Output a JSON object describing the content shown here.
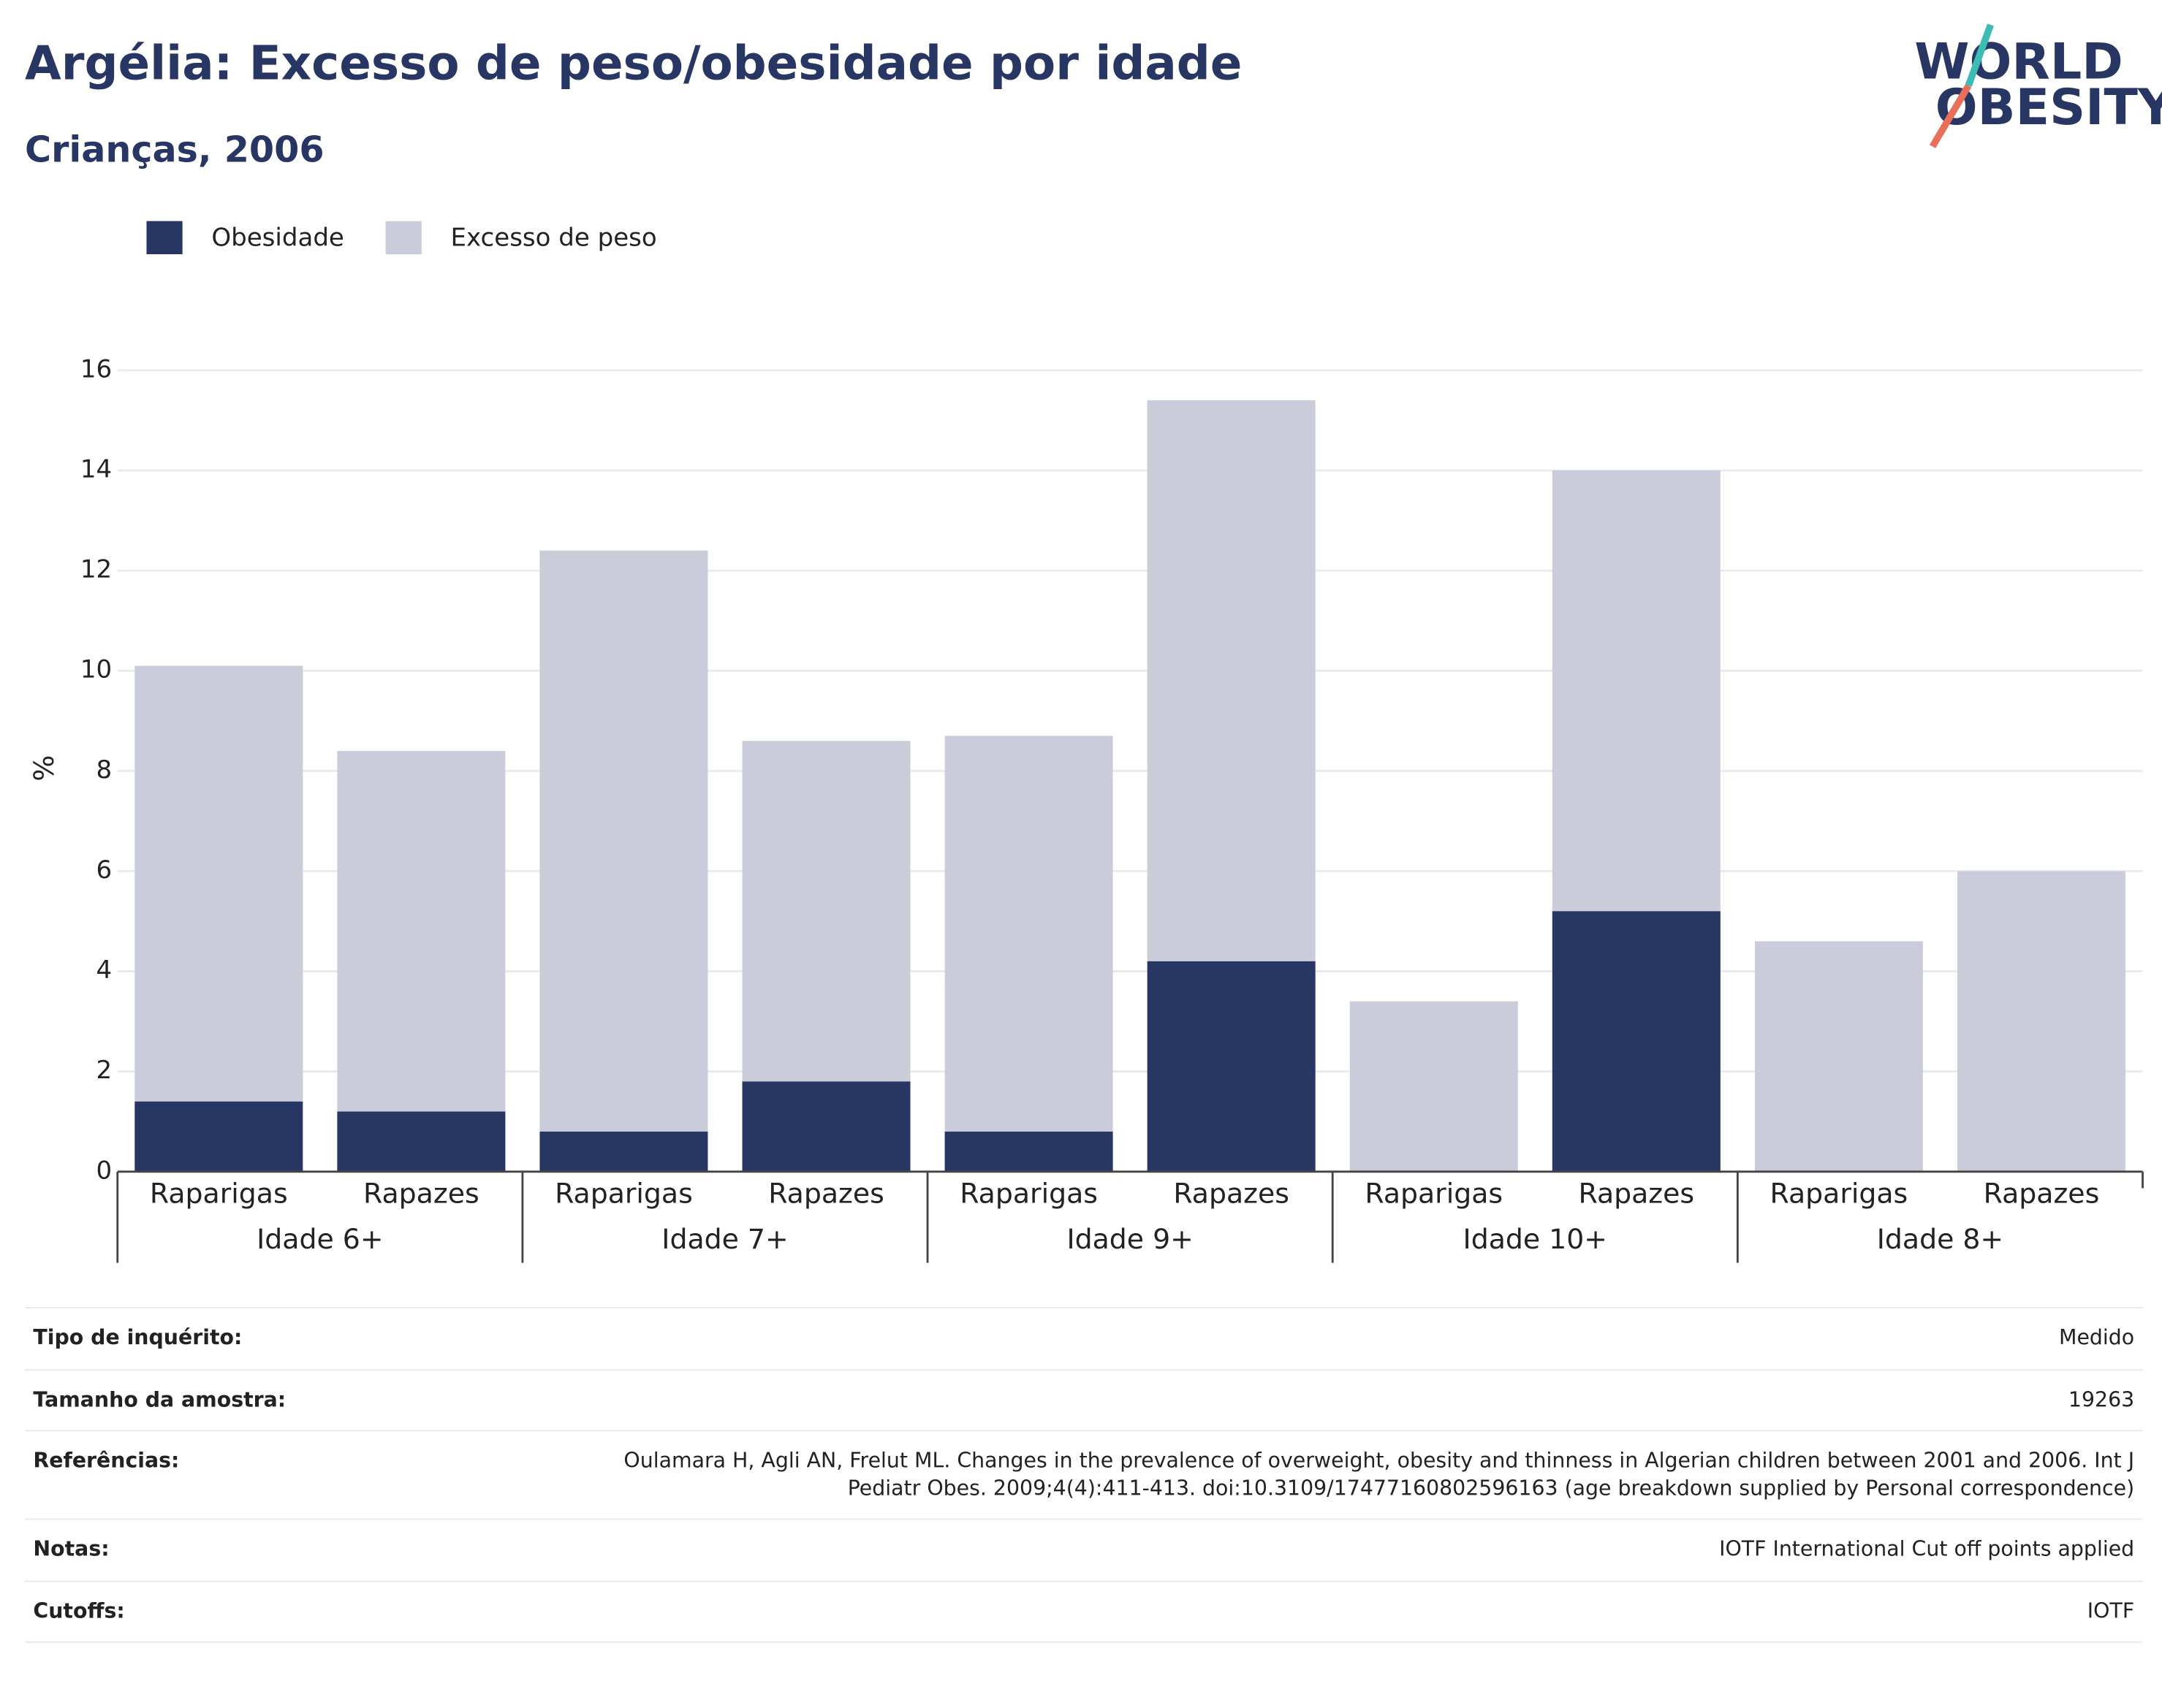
{
  "chart_data": {
    "type": "bar",
    "barmode": "overlay",
    "title": "Argélia: Excesso de peso/obesidade por idade",
    "subtitle": "Crianças, 2006",
    "y_label": "%",
    "categories": [
      "Raparigas",
      "Rapazes",
      "Raparigas",
      "Rapazes",
      "Raparigas",
      "Rapazes",
      "Raparigas",
      "Rapazes",
      "Raparigas",
      "Rapazes"
    ],
    "groups": [
      "Idade 6+",
      "Idade 7+",
      "Idade 9+",
      "Idade 10+",
      "Idade 8+"
    ],
    "series": [
      {
        "name": "Excesso de peso",
        "color": "#cacdd9",
        "values": [
          10.1,
          8.4,
          12.4,
          8.6,
          8.7,
          15.4,
          3.4,
          14.0,
          4.6,
          6.0
        ]
      },
      {
        "name": "Obesidade",
        "color": "#283664",
        "values": [
          1.4,
          1.2,
          0.8,
          1.8,
          0.8,
          4.2,
          null,
          5.2,
          null,
          null
        ]
      }
    ],
    "legend_order": [
      1,
      0
    ],
    "ylim": [
      0,
      16
    ],
    "yticks": [
      0,
      2,
      4,
      6,
      8,
      10,
      12,
      14,
      16
    ],
    "grid": true
  },
  "logo": {
    "line1": "WORLD",
    "line2": "OBESITY"
  },
  "table": {
    "rows": [
      [
        "Tipo de inquérito:",
        "Medido"
      ],
      [
        "Tamanho da amostra:",
        "19263"
      ],
      [
        "Referências:",
        "Oulamara H, Agli AN, Frelut ML. Changes in the prevalence of overweight, obesity and thinness in Algerian children between 2001 and 2006. Int J Pediatr Obes. 2009;4(4):411-413. doi:10.3109/17477160802596163 (age breakdown supplied by Personal correspondence)"
      ],
      [
        "Notas:",
        "IOTF International Cut off points applied"
      ],
      [
        "Cutoffs:",
        "IOTF"
      ]
    ]
  }
}
